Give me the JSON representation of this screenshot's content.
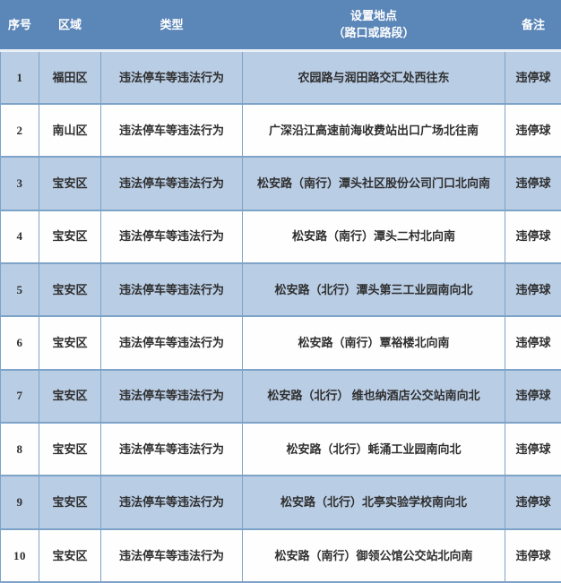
{
  "colors": {
    "header_bg": "#5b86b8",
    "header_text": "#ffffff",
    "row_alt_bg": "#b9cde5",
    "row_bg": "#fefefe",
    "border": "#7da3c8",
    "text": "#2f2f2f"
  },
  "table": {
    "columns": [
      {
        "key": "index",
        "label": "序号"
      },
      {
        "key": "district",
        "label": "区域"
      },
      {
        "key": "type",
        "label": "类型"
      },
      {
        "key": "location",
        "label": "设置地点\n（路口或路段）"
      },
      {
        "key": "remark",
        "label": "备注"
      }
    ],
    "rows": [
      [
        "1",
        "福田区",
        "违法停车等违法行为",
        "农园路与润田路交汇处西往东",
        "违停球"
      ],
      [
        "2",
        "南山区",
        "违法停车等违法行为",
        "广深沿江高速前海收费站出口广场北往南",
        "违停球"
      ],
      [
        "3",
        "宝安区",
        "违法停车等违法行为",
        "松安路（南行）潭头社区股份公司门口北向南",
        "违停球"
      ],
      [
        "4",
        "宝安区",
        "违法停车等违法行为",
        "松安路（南行）潭头二村北向南",
        "违停球"
      ],
      [
        "5",
        "宝安区",
        "违法停车等违法行为",
        "松安路（北行）潭头第三工业园南向北",
        "违停球"
      ],
      [
        "6",
        "宝安区",
        "违法停车等违法行为",
        "松安路（南行）覃裕楼北向南",
        "违停球"
      ],
      [
        "7",
        "宝安区",
        "违法停车等违法行为",
        "松安路（北行） 维也纳酒店公交站南向北",
        "违停球"
      ],
      [
        "8",
        "宝安区",
        "违法停车等违法行为",
        "松安路（北行）蚝涌工业园南向北",
        "违停球"
      ],
      [
        "9",
        "宝安区",
        "违法停车等违法行为",
        "松安路（北行）北亭实验学校南向北",
        "违停球"
      ],
      [
        "10",
        "宝安区",
        "违法停车等违法行为",
        "松安路（南行）御领公馆公交站北向南",
        "违停球"
      ]
    ]
  }
}
